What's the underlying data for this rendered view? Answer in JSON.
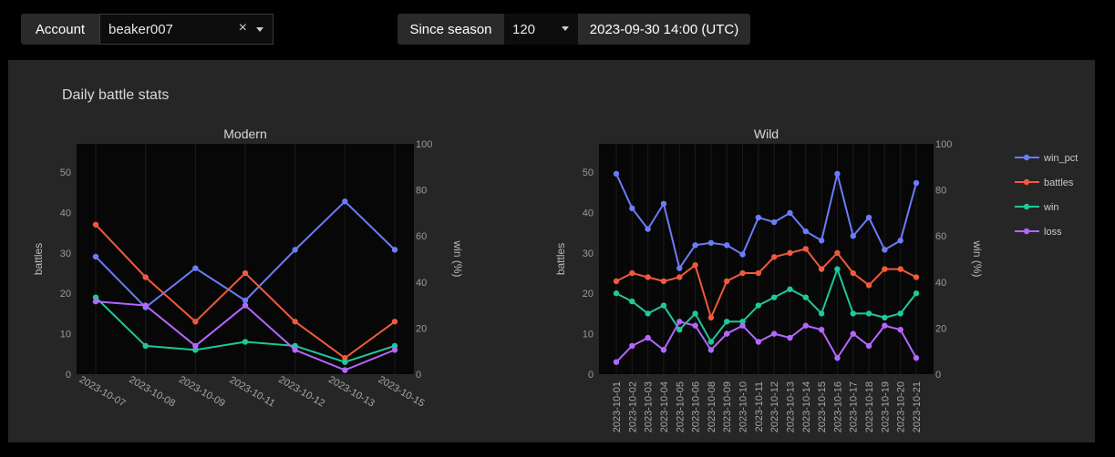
{
  "topbar": {
    "account_label": "Account",
    "account_value": "beaker007",
    "clear_glyph": "×",
    "season_label": "Since season",
    "season_value": "120",
    "date_label": "2023-09-30 14:00 (UTC)"
  },
  "panel": {
    "title": "Daily battle stats"
  },
  "legend": [
    {
      "name": "win_pct",
      "color": "#6b7cf6"
    },
    {
      "name": "battles",
      "color": "#ef5a3c"
    },
    {
      "name": "win",
      "color": "#1ec99a"
    },
    {
      "name": "loss",
      "color": "#b466ff"
    }
  ],
  "chart_data": [
    {
      "type": "line",
      "title": "Modern",
      "ylabel": "battles",
      "y2label": "win (%)",
      "ylim": [
        0,
        57
      ],
      "y2lim": [
        0,
        100
      ],
      "yticks": [
        0,
        10,
        20,
        30,
        40,
        50
      ],
      "y2ticks": [
        0,
        20,
        40,
        60,
        80,
        100
      ],
      "categories": [
        "2023-10-07",
        "2023-10-08",
        "2023-10-09",
        "2023-10-11",
        "2023-10-12",
        "2023-10-13",
        "2023-10-15"
      ],
      "series": [
        {
          "name": "win_pct",
          "axis": "right",
          "color": "#6b7cf6",
          "values": [
            51,
            29,
            46,
            32,
            54,
            75,
            54
          ]
        },
        {
          "name": "battles",
          "axis": "left",
          "color": "#ef5a3c",
          "values": [
            37,
            24,
            13,
            25,
            13,
            4,
            13
          ]
        },
        {
          "name": "win",
          "axis": "left",
          "color": "#1ec99a",
          "values": [
            19,
            7,
            6,
            8,
            7,
            3,
            7
          ]
        },
        {
          "name": "loss",
          "axis": "left",
          "color": "#b466ff",
          "values": [
            18,
            17,
            7,
            17,
            6,
            1,
            6
          ]
        }
      ]
    },
    {
      "type": "line",
      "title": "Wild",
      "ylabel": "battles",
      "y2label": "win (%)",
      "ylim": [
        0,
        57
      ],
      "y2lim": [
        0,
        100
      ],
      "yticks": [
        0,
        10,
        20,
        30,
        40,
        50
      ],
      "y2ticks": [
        0,
        20,
        40,
        60,
        80,
        100
      ],
      "categories": [
        "2023-10-01",
        "2023-10-02",
        "2023-10-03",
        "2023-10-04",
        "2023-10-05",
        "2023-10-06",
        "2023-10-08",
        "2023-10-09",
        "2023-10-10",
        "2023-10-11",
        "2023-10-12",
        "2023-10-13",
        "2023-10-14",
        "2023-10-15",
        "2023-10-16",
        "2023-10-17",
        "2023-10-18",
        "2023-10-19",
        "2023-10-20",
        "2023-10-21"
      ],
      "series": [
        {
          "name": "win_pct",
          "axis": "right",
          "color": "#6b7cf6",
          "values": [
            87,
            72,
            63,
            74,
            46,
            56,
            57,
            56,
            52,
            68,
            66,
            70,
            62,
            58,
            87,
            60,
            68,
            54,
            58,
            83
          ]
        },
        {
          "name": "battles",
          "axis": "left",
          "color": "#ef5a3c",
          "values": [
            23,
            25,
            24,
            23,
            24,
            27,
            14,
            23,
            25,
            25,
            29,
            30,
            31,
            26,
            30,
            25,
            22,
            26,
            26,
            24
          ]
        },
        {
          "name": "win",
          "axis": "left",
          "color": "#1ec99a",
          "values": [
            20,
            18,
            15,
            17,
            11,
            15,
            8,
            13,
            13,
            17,
            19,
            21,
            19,
            15,
            26,
            15,
            15,
            14,
            15,
            20
          ]
        },
        {
          "name": "loss",
          "axis": "left",
          "color": "#b466ff",
          "values": [
            3,
            7,
            9,
            6,
            13,
            12,
            6,
            10,
            12,
            8,
            10,
            9,
            12,
            11,
            4,
            10,
            7,
            12,
            11,
            4
          ]
        }
      ]
    }
  ]
}
